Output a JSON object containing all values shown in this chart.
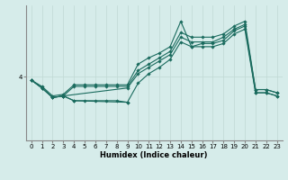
{
  "title": "",
  "xlabel": "Humidex (Indice chaleur)",
  "ylabel": "",
  "bg_color": "#d6ecea",
  "line_color": "#1a6b5e",
  "grid_color": "#c0d8d4",
  "xlim": [
    -0.5,
    23.5
  ],
  "ylim": [
    0,
    8.5
  ],
  "series": {
    "line1_x": [
      0,
      1,
      2,
      3,
      4,
      5,
      6,
      7,
      8,
      9,
      10,
      11,
      12,
      13,
      14,
      15,
      16,
      17,
      18,
      19,
      20,
      21,
      22,
      23
    ],
    "line1_y": [
      3.8,
      3.4,
      2.8,
      2.9,
      3.5,
      3.5,
      3.5,
      3.5,
      3.5,
      3.5,
      4.8,
      5.2,
      5.5,
      5.9,
      7.5,
      5.9,
      6.1,
      6.1,
      6.3,
      6.9,
      7.2,
      3.2,
      3.2,
      3.0
    ],
    "line2_x": [
      0,
      1,
      2,
      3,
      4,
      5,
      6,
      7,
      8,
      9,
      10,
      11,
      12,
      13,
      14,
      15,
      16,
      17,
      18,
      19,
      20,
      21,
      22,
      23
    ],
    "line2_y": [
      3.8,
      3.3,
      2.7,
      2.8,
      3.4,
      3.4,
      3.4,
      3.4,
      3.4,
      3.4,
      4.4,
      4.8,
      5.2,
      5.6,
      6.8,
      6.5,
      6.5,
      6.5,
      6.7,
      7.2,
      7.5,
      3.2,
      3.2,
      3.0
    ],
    "line3_x": [
      0,
      1,
      2,
      3,
      9,
      10,
      11,
      12,
      13,
      14,
      15,
      16,
      17,
      18,
      19,
      20,
      21,
      22,
      23
    ],
    "line3_y": [
      3.8,
      3.3,
      2.7,
      2.8,
      3.3,
      4.2,
      4.6,
      5.0,
      5.4,
      6.5,
      6.2,
      6.2,
      6.2,
      6.5,
      7.0,
      7.3,
      3.0,
      3.0,
      2.8
    ],
    "line4_x": [
      3,
      4,
      5,
      6,
      7,
      8,
      9
    ],
    "line4_y": [
      2.8,
      2.5,
      2.5,
      2.5,
      2.5,
      2.5,
      2.4
    ],
    "line5_x": [
      0,
      1,
      2,
      3,
      4,
      9,
      10,
      11,
      12,
      13,
      14,
      15,
      16,
      17,
      18,
      19,
      20,
      21,
      22,
      23
    ],
    "line5_y": [
      3.8,
      3.3,
      2.7,
      2.8,
      2.5,
      2.4,
      3.6,
      4.2,
      4.6,
      5.1,
      6.2,
      5.9,
      5.9,
      5.9,
      6.1,
      6.7,
      7.0,
      3.0,
      3.0,
      2.8
    ]
  },
  "ytick_labels": [
    "4"
  ],
  "ytick_positions": [
    4
  ],
  "xtick_labels": [
    "0",
    "1",
    "2",
    "3",
    "4",
    "5",
    "6",
    "7",
    "8",
    "9",
    "10",
    "11",
    "12",
    "13",
    "14",
    "15",
    "16",
    "17",
    "18",
    "19",
    "20",
    "21",
    "22",
    "23"
  ],
  "xtick_positions": [
    0,
    1,
    2,
    3,
    4,
    5,
    6,
    7,
    8,
    9,
    10,
    11,
    12,
    13,
    14,
    15,
    16,
    17,
    18,
    19,
    20,
    21,
    22,
    23
  ],
  "marker": "D",
  "markersize": 1.8,
  "linewidth": 0.8,
  "xlabel_fontsize": 6,
  "tick_fontsize": 5
}
